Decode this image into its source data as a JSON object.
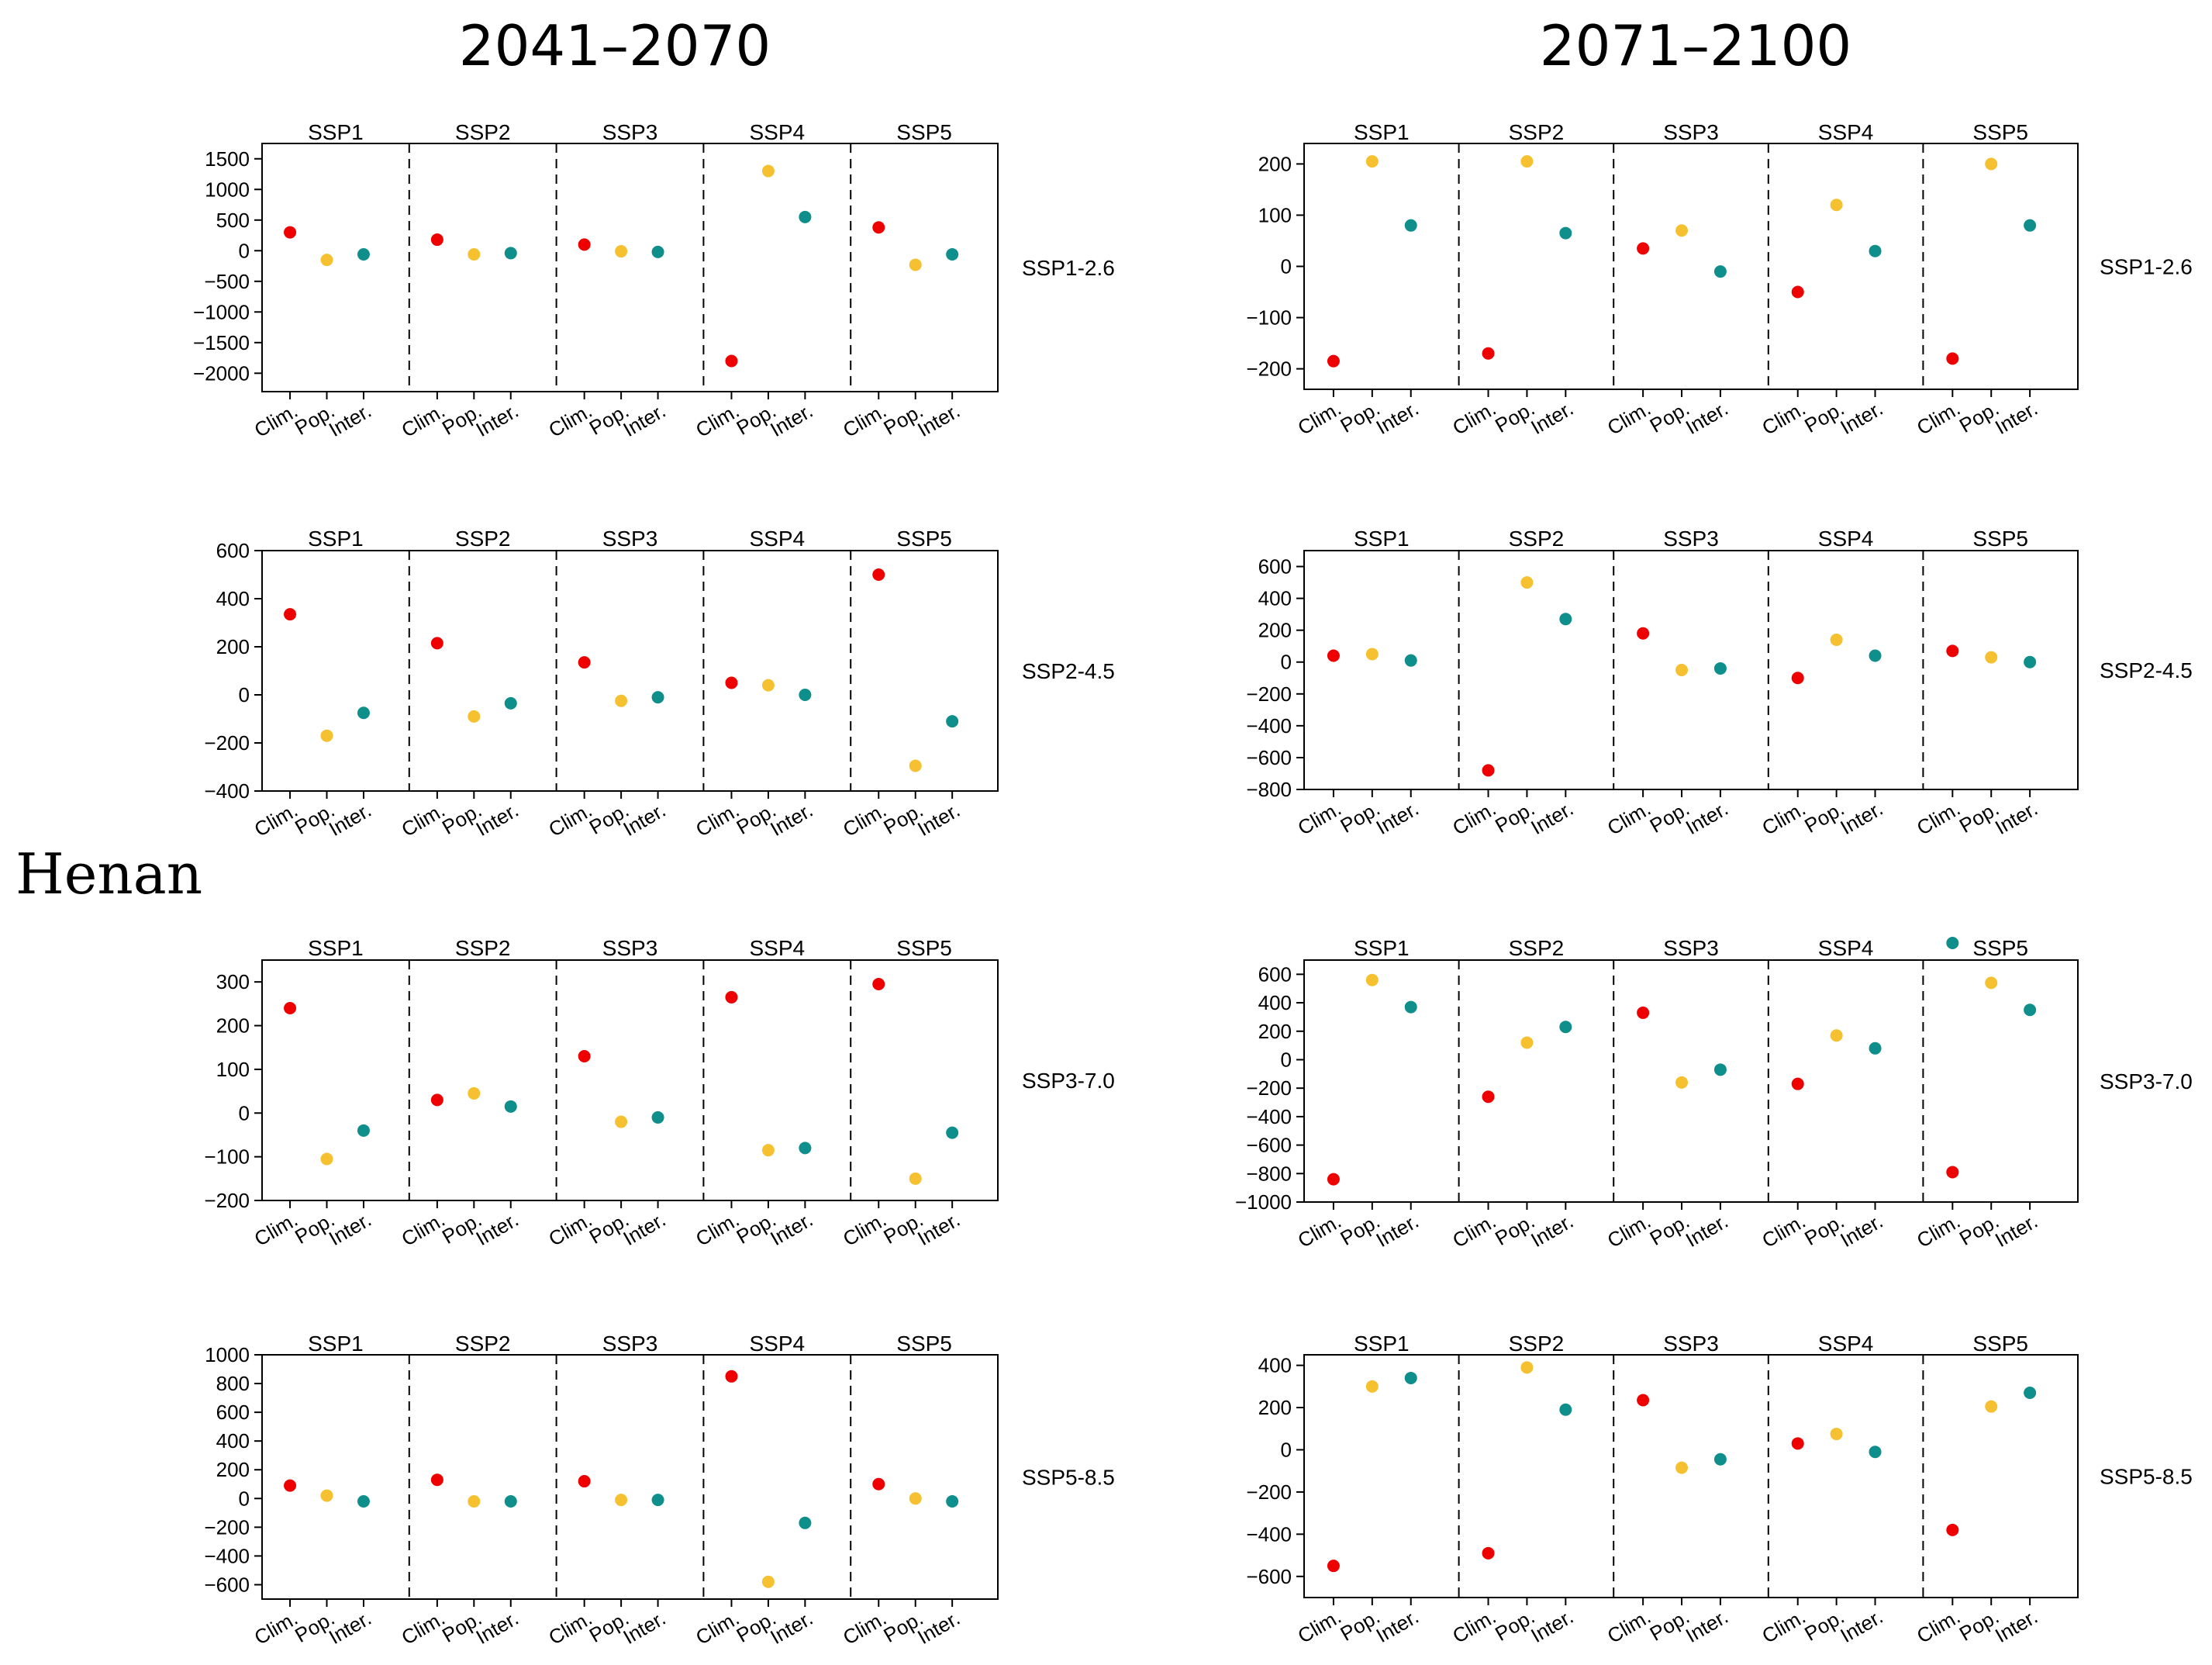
{
  "figure": {
    "region": "Henan",
    "colors": {
      "Clim.": "#ee0000",
      "Pop.": "#f5c130",
      "Inter.": "#0f8f8c"
    },
    "groups": [
      "SSP1",
      "SSP2",
      "SSP3",
      "SSP4",
      "SSP5"
    ],
    "xtick_labels": [
      "Clim.",
      "Pop.",
      "Inter."
    ]
  },
  "chart_data": [
    {
      "type": "scatter",
      "period": "2041–2070",
      "scenario": "SSP1-2.6",
      "ylim": [
        -2300,
        1750
      ],
      "yticks": [
        1500,
        1000,
        500,
        0,
        -500,
        -1000,
        -1500,
        -2000
      ],
      "series": [
        {
          "name": "Clim.",
          "values": [
            300,
            180,
            100,
            -1800,
            380
          ]
        },
        {
          "name": "Pop.",
          "values": [
            -150,
            -60,
            -10,
            1300,
            -230
          ]
        },
        {
          "name": "Inter.",
          "values": [
            -60,
            -40,
            -20,
            550,
            -60
          ]
        }
      ]
    },
    {
      "type": "scatter",
      "period": "2041–2070",
      "scenario": "SSP2-4.5",
      "ylim": [
        -400,
        600
      ],
      "yticks": [
        600,
        400,
        200,
        0,
        -200,
        -400
      ],
      "series": [
        {
          "name": "Clim.",
          "values": [
            335,
            215,
            135,
            50,
            500
          ]
        },
        {
          "name": "Pop.",
          "values": [
            -170,
            -90,
            -25,
            40,
            -295
          ]
        },
        {
          "name": "Inter.",
          "values": [
            -75,
            -35,
            -10,
            0,
            -110
          ]
        }
      ]
    },
    {
      "type": "scatter",
      "period": "2041–2070",
      "scenario": "SSP3-7.0",
      "ylim": [
        -200,
        350
      ],
      "yticks": [
        300,
        200,
        100,
        0,
        -100,
        -200
      ],
      "series": [
        {
          "name": "Clim.",
          "values": [
            240,
            30,
            130,
            265,
            295
          ]
        },
        {
          "name": "Pop.",
          "values": [
            -105,
            45,
            -20,
            -85,
            -150
          ]
        },
        {
          "name": "Inter.",
          "values": [
            -40,
            15,
            -10,
            -80,
            -45
          ]
        }
      ]
    },
    {
      "type": "scatter",
      "period": "2041–2070",
      "scenario": "SSP5-8.5",
      "ylim": [
        -700,
        1000
      ],
      "yticks": [
        1000,
        800,
        600,
        400,
        200,
        0,
        -200,
        -400,
        -600
      ],
      "series": [
        {
          "name": "Clim.",
          "values": [
            90,
            130,
            120,
            850,
            100
          ]
        },
        {
          "name": "Pop.",
          "values": [
            20,
            -20,
            -10,
            -580,
            0
          ]
        },
        {
          "name": "Inter.",
          "values": [
            -20,
            -20,
            -10,
            -170,
            -20
          ]
        }
      ]
    },
    {
      "type": "scatter",
      "period": "2071–2100",
      "scenario": "SSP1-2.6",
      "ylim": [
        -240,
        240
      ],
      "yticks": [
        200,
        100,
        0,
        -100,
        -200
      ],
      "series": [
        {
          "name": "Clim.",
          "values": [
            -185,
            -170,
            35,
            -50,
            -180
          ]
        },
        {
          "name": "Pop.",
          "values": [
            205,
            205,
            70,
            120,
            200
          ]
        },
        {
          "name": "Inter.",
          "values": [
            80,
            65,
            -10,
            30,
            80
          ]
        }
      ]
    },
    {
      "type": "scatter",
      "period": "2071–2100",
      "scenario": "SSP2-4.5",
      "ylim": [
        -800,
        700
      ],
      "yticks": [
        600,
        400,
        200,
        0,
        -200,
        -400,
        -600,
        -800
      ],
      "series": [
        {
          "name": "Clim.",
          "values": [
            40,
            -680,
            180,
            -100,
            70
          ]
        },
        {
          "name": "Pop.",
          "values": [
            50,
            500,
            -50,
            140,
            30
          ]
        },
        {
          "name": "Inter.",
          "values": [
            10,
            270,
            -40,
            40,
            0
          ]
        }
      ]
    },
    {
      "type": "scatter",
      "period": "2071–2100",
      "scenario": "SSP3-7.0",
      "ylim": [
        -1000,
        700
      ],
      "yticks": [
        600,
        400,
        200,
        0,
        -200,
        -400,
        -600,
        -800,
        -1000
      ],
      "series": [
        {
          "name": "Clim.",
          "values": [
            -840,
            -260,
            330,
            -170,
            -790
          ]
        },
        {
          "name": "Pop.",
          "values": [
            560,
            120,
            -160,
            170,
            540
          ]
        },
        {
          "name": "Inter.",
          "values": [
            370,
            230,
            -70,
            80,
            350
          ]
        }
      ],
      "extra_points": [
        {
          "group": "SSP5",
          "series": "Inter.",
          "value": 820,
          "note": "plotted above frame"
        }
      ]
    },
    {
      "type": "scatter",
      "period": "2071–2100",
      "scenario": "SSP5-8.5",
      "ylim": [
        -700,
        450
      ],
      "yticks": [
        400,
        200,
        0,
        -200,
        -400,
        -600
      ],
      "series": [
        {
          "name": "Clim.",
          "values": [
            -550,
            -490,
            235,
            30,
            -380
          ]
        },
        {
          "name": "Pop.",
          "values": [
            300,
            390,
            -85,
            75,
            205
          ]
        },
        {
          "name": "Inter.",
          "values": [
            340,
            190,
            -45,
            -10,
            270
          ]
        }
      ]
    }
  ]
}
